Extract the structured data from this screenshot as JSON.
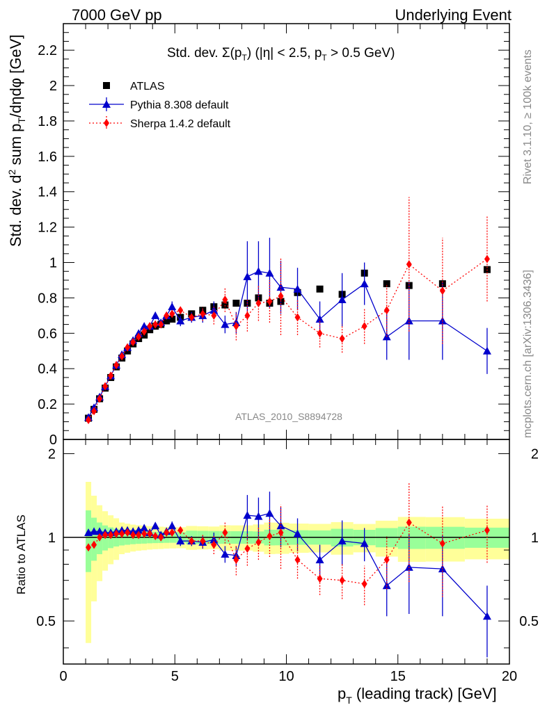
{
  "header": {
    "left": "7000 GeV pp",
    "right": "Underlying Event",
    "side_top": "Rivet 3.1.10, ≥ 100k events",
    "side_bottom": "mcplots.cern.ch [arXiv:1306.3436]"
  },
  "chart_data": {
    "type": "scatter",
    "title": "Std. dev. Σ(p_T) (|η| < 2.5, p_T > 0.5 GeV)",
    "ylabel": "Std. dev. d² sum p_T/dηdφ [GeV]",
    "xlabel": "p_T (leading track) [GeV]",
    "watermark": "ATLAS_2010_S8894728",
    "xlim": [
      0,
      20
    ],
    "ylim": [
      0,
      2.35
    ],
    "xticks": [
      "0",
      "5",
      "10",
      "15",
      "20"
    ],
    "yticks": [
      "0",
      "0.2",
      "0.4",
      "0.6",
      "0.8",
      "1",
      "1.2",
      "1.4",
      "1.6",
      "1.8",
      "2",
      "2.2"
    ],
    "ratio": {
      "ylabel": "Ratio to ATLAS",
      "ylim": [
        0.35,
        2.25
      ],
      "yticks": [
        "0.5",
        "1",
        "2"
      ]
    },
    "x": [
      1.125,
      1.375,
      1.625,
      1.875,
      2.125,
      2.375,
      2.625,
      2.875,
      3.125,
      3.375,
      3.625,
      3.875,
      4.125,
      4.375,
      4.625,
      4.875,
      5.25,
      5.75,
      6.25,
      6.75,
      7.25,
      7.75,
      8.25,
      8.75,
      9.25,
      9.75,
      10.5,
      11.5,
      12.5,
      13.5,
      14.5,
      15.5,
      17.0,
      19.0
    ],
    "series": [
      {
        "name": "ATLAS",
        "color": "#000000",
        "marker": "square",
        "values": [
          0.12,
          0.17,
          0.23,
          0.29,
          0.35,
          0.41,
          0.46,
          0.5,
          0.54,
          0.57,
          0.59,
          0.62,
          0.64,
          0.65,
          0.67,
          0.68,
          0.69,
          0.71,
          0.73,
          0.75,
          0.76,
          0.77,
          0.77,
          0.8,
          0.77,
          0.78,
          0.83,
          0.85,
          0.82,
          0.94,
          0.88,
          0.87,
          0.88,
          0.96
        ],
        "band_inner": [
          0.03,
          0.03,
          0.03,
          0.03,
          0.03,
          0.03,
          0.03,
          0.03,
          0.03,
          0.03,
          0.03,
          0.03,
          0.03,
          0.03,
          0.03,
          0.03,
          0.03,
          0.04,
          0.04,
          0.04,
          0.04,
          0.04,
          0.04,
          0.04,
          0.05,
          0.05,
          0.05,
          0.05,
          0.06,
          0.06,
          0.07,
          0.08,
          0.08,
          0.08
        ],
        "band_outer": [
          0.07,
          0.07,
          0.07,
          0.07,
          0.07,
          0.07,
          0.06,
          0.06,
          0.06,
          0.06,
          0.06,
          0.06,
          0.06,
          0.06,
          0.06,
          0.06,
          0.06,
          0.07,
          0.07,
          0.07,
          0.08,
          0.08,
          0.08,
          0.09,
          0.1,
          0.1,
          0.1,
          0.1,
          0.11,
          0.11,
          0.13,
          0.16,
          0.16,
          0.16
        ]
      },
      {
        "name": "Pythia 8.308 default",
        "color": "#0000cc",
        "marker": "triangle",
        "line": "solid",
        "values": [
          0.125,
          0.18,
          0.24,
          0.3,
          0.36,
          0.42,
          0.48,
          0.52,
          0.56,
          0.6,
          0.64,
          0.64,
          0.7,
          0.66,
          0.7,
          0.75,
          0.67,
          0.69,
          0.7,
          0.73,
          0.65,
          0.66,
          0.92,
          0.95,
          0.94,
          0.86,
          0.85,
          0.68,
          0.79,
          0.88,
          0.58,
          0.67,
          0.67,
          0.5
        ],
        "errors": [
          0.01,
          0.01,
          0.01,
          0.01,
          0.01,
          0.01,
          0.01,
          0.01,
          0.01,
          0.01,
          0.02,
          0.02,
          0.02,
          0.02,
          0.02,
          0.03,
          0.03,
          0.03,
          0.04,
          0.05,
          0.05,
          0.06,
          0.2,
          0.17,
          0.2,
          0.15,
          0.12,
          0.1,
          0.15,
          0.12,
          0.13,
          0.22,
          0.22,
          0.13
        ],
        "ratio": [
          1.04,
          1.05,
          1.05,
          1.04,
          1.04,
          1.05,
          1.06,
          1.06,
          1.05,
          1.06,
          1.08,
          1.04,
          1.1,
          1.02,
          1.05,
          1.1,
          0.97,
          0.97,
          0.96,
          0.98,
          0.87,
          0.86,
          1.2,
          1.19,
          1.22,
          1.1,
          1.03,
          0.83,
          0.97,
          0.95,
          0.67,
          0.78,
          0.77,
          0.52
        ],
        "ratio_errors": [
          0.02,
          0.02,
          0.02,
          0.02,
          0.02,
          0.02,
          0.02,
          0.02,
          0.02,
          0.02,
          0.03,
          0.03,
          0.03,
          0.03,
          0.03,
          0.04,
          0.04,
          0.04,
          0.05,
          0.06,
          0.06,
          0.07,
          0.22,
          0.2,
          0.24,
          0.18,
          0.14,
          0.11,
          0.18,
          0.13,
          0.15,
          0.25,
          0.25,
          0.15
        ]
      },
      {
        "name": "Sherpa 1.4.2 default",
        "color": "#ff0000",
        "marker": "diamond",
        "line": "dotted",
        "values": [
          0.11,
          0.16,
          0.23,
          0.3,
          0.36,
          0.42,
          0.47,
          0.52,
          0.55,
          0.58,
          0.61,
          0.64,
          0.65,
          0.65,
          0.7,
          0.71,
          0.73,
          0.69,
          0.71,
          0.7,
          0.79,
          0.64,
          0.7,
          0.77,
          0.78,
          0.81,
          0.69,
          0.6,
          0.57,
          0.64,
          0.73,
          0.99,
          0.84,
          1.02
        ],
        "errors": [
          0.01,
          0.01,
          0.01,
          0.01,
          0.01,
          0.01,
          0.01,
          0.01,
          0.01,
          0.01,
          0.01,
          0.01,
          0.01,
          0.01,
          0.01,
          0.02,
          0.02,
          0.02,
          0.04,
          0.05,
          0.07,
          0.08,
          0.09,
          0.1,
          0.12,
          0.22,
          0.1,
          0.08,
          0.08,
          0.1,
          0.15,
          0.38,
          0.3,
          0.24
        ],
        "ratio": [
          0.92,
          0.94,
          1.0,
          1.02,
          1.02,
          1.03,
          1.03,
          1.04,
          1.02,
          1.02,
          1.03,
          1.03,
          1.01,
          1.0,
          1.04,
          1.04,
          1.06,
          0.97,
          0.97,
          0.94,
          1.04,
          0.83,
          0.91,
          0.96,
          1.01,
          1.04,
          0.83,
          0.71,
          0.7,
          0.68,
          0.83,
          1.13,
          0.95,
          1.06
        ],
        "ratio_errors": [
          0.02,
          0.02,
          0.02,
          0.02,
          0.02,
          0.02,
          0.02,
          0.02,
          0.02,
          0.02,
          0.02,
          0.02,
          0.02,
          0.02,
          0.02,
          0.03,
          0.03,
          0.03,
          0.05,
          0.07,
          0.09,
          0.1,
          0.12,
          0.13,
          0.16,
          0.27,
          0.12,
          0.09,
          0.1,
          0.11,
          0.18,
          0.44,
          0.34,
          0.25
        ]
      }
    ]
  }
}
